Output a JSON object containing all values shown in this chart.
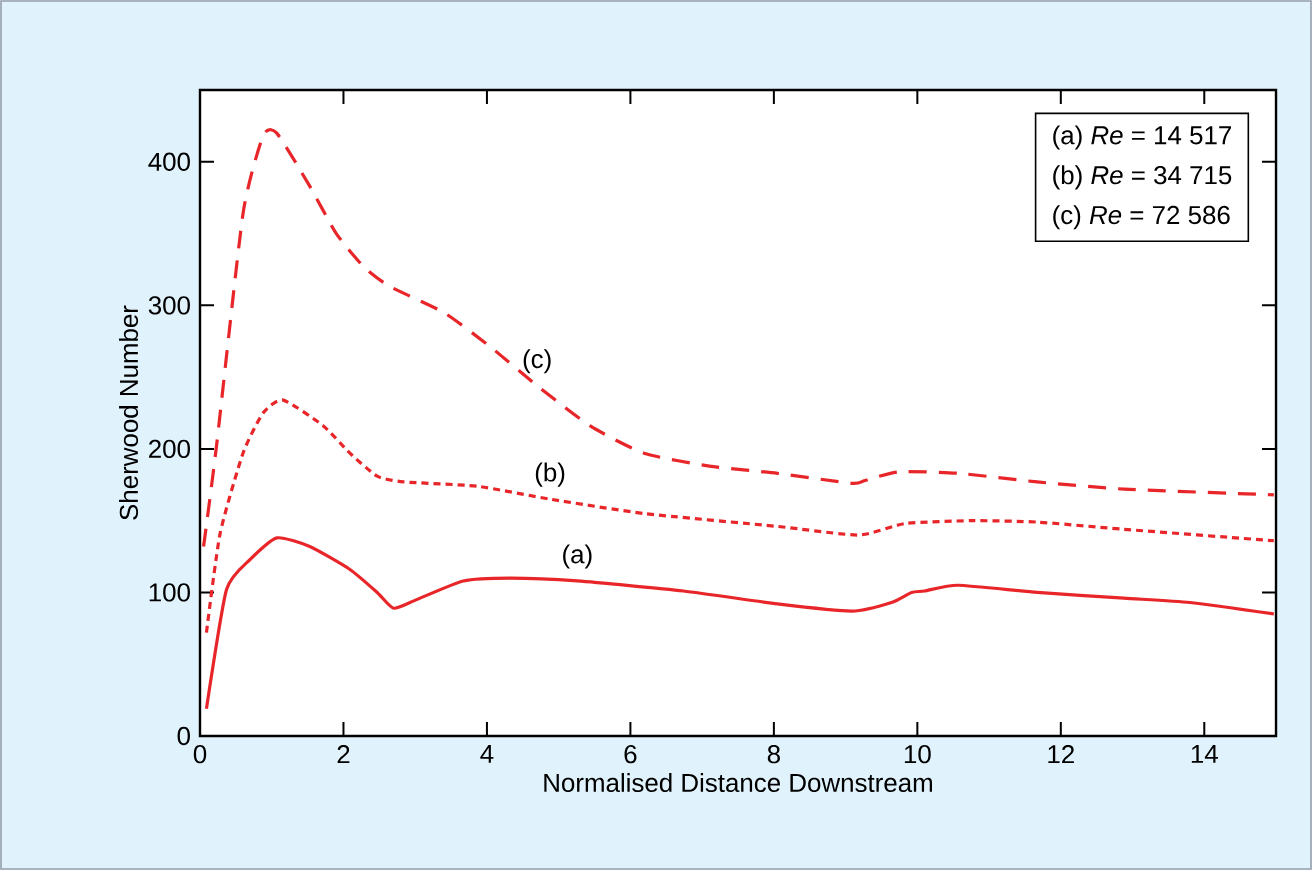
{
  "chart_data": {
    "type": "line",
    "xlabel": "Normalised Distance Downstream",
    "ylabel": "Sherwood Number",
    "xlim": [
      0,
      15
    ],
    "ylim": [
      0,
      450
    ],
    "xticks": [
      0,
      2,
      4,
      6,
      8,
      10,
      12,
      14
    ],
    "yticks": [
      0,
      100,
      200,
      300,
      400
    ],
    "grid": false,
    "series": [
      {
        "name": "(a)",
        "color": "#e8262a",
        "line_style": "solid",
        "x": [
          0.09,
          0.37,
          0.7,
          1.07,
          1.53,
          2.09,
          2.47,
          2.7,
          3.02,
          3.67,
          4.33,
          5.26,
          6.74,
          8.05,
          9.09,
          9.64,
          9.92,
          10.1,
          10.57,
          11.67,
          12.88,
          13.8,
          14.97
        ],
        "values": [
          19,
          102,
          123,
          138,
          132,
          116,
          100,
          89,
          95,
          108,
          110,
          108,
          101,
          92,
          87,
          93,
          100,
          101,
          105,
          100,
          96,
          93,
          85
        ]
      },
      {
        "name": "(b)",
        "color": "#e8262a",
        "line_style": "dotted",
        "x": [
          0.09,
          0.28,
          0.6,
          0.88,
          1.16,
          1.72,
          2.09,
          2.47,
          2.84,
          3.86,
          4.88,
          6.19,
          8.05,
          9.18,
          9.83,
          10.75,
          11.67,
          12.88,
          14.97
        ],
        "values": [
          72,
          141,
          197,
          225,
          234,
          216,
          197,
          181,
          177,
          174,
          165,
          155,
          146,
          140,
          148,
          150,
          149,
          144,
          136
        ]
      },
      {
        "name": "(c)",
        "color": "#e8262a",
        "line_style": "dashed",
        "x": [
          0.05,
          0.23,
          0.6,
          0.88,
          1.07,
          1.53,
          1.9,
          2.28,
          2.65,
          3.4,
          4.05,
          4.7,
          5.44,
          6.19,
          7.1,
          8.05,
          9.09,
          9.27,
          9.74,
          10.57,
          11.67,
          12.88,
          14.97
        ],
        "values": [
          132,
          202,
          364,
          418,
          420,
          383,
          350,
          327,
          313,
          295,
          271,
          244,
          216,
          197,
          188,
          183,
          176,
          178,
          184,
          183,
          177,
          172,
          168
        ]
      }
    ],
    "annotations": [
      "(a)  *Re* = 14 517",
      "(b)  *Re* = 34 715",
      "(c)  *Re* = 72 586"
    ]
  }
}
